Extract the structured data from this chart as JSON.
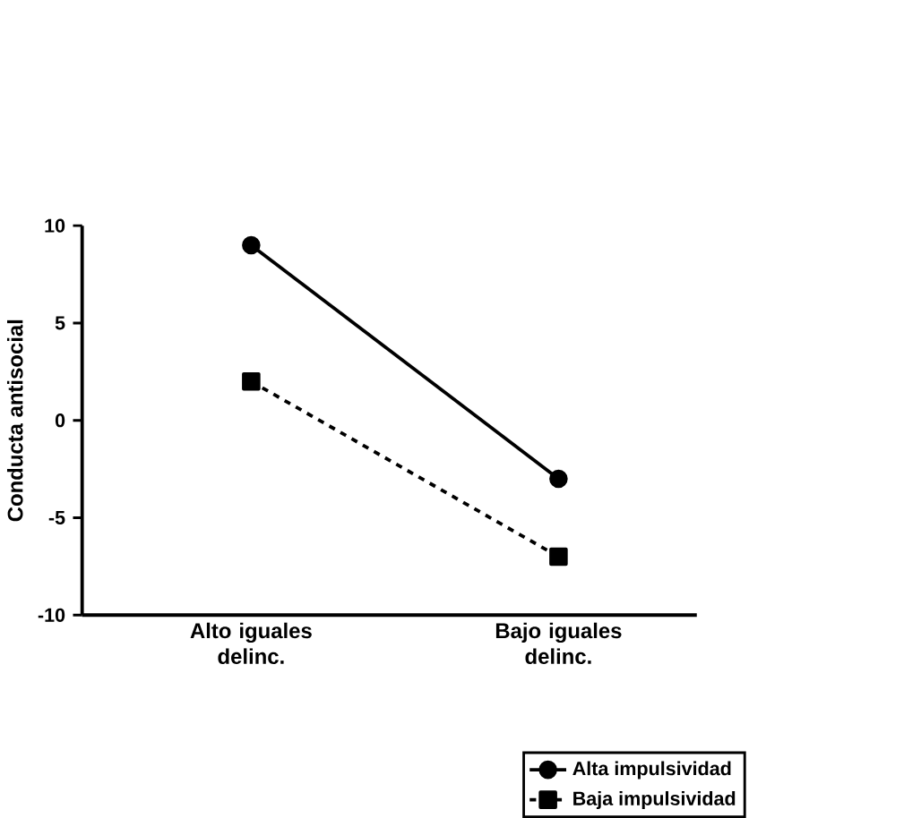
{
  "chart_data": {
    "type": "line",
    "ylabel": "Conducta antisocial",
    "categories": [
      "Alto iguales delinc.",
      "Bajo iguales delinc."
    ],
    "ylim": [
      -10,
      10
    ],
    "yticks": [
      -10,
      -5,
      0,
      5,
      10
    ],
    "series": [
      {
        "name": "Alta impulsividad",
        "color": "#000000",
        "values": [
          9,
          -3
        ],
        "marker": "circle",
        "line_style": "solid"
      },
      {
        "name": "Baja impulsividad",
        "color": "#000000",
        "values": [
          2,
          -7
        ],
        "marker": "square",
        "line_style": "dashed"
      }
    ],
    "grid": false,
    "legend": "bottom right"
  }
}
